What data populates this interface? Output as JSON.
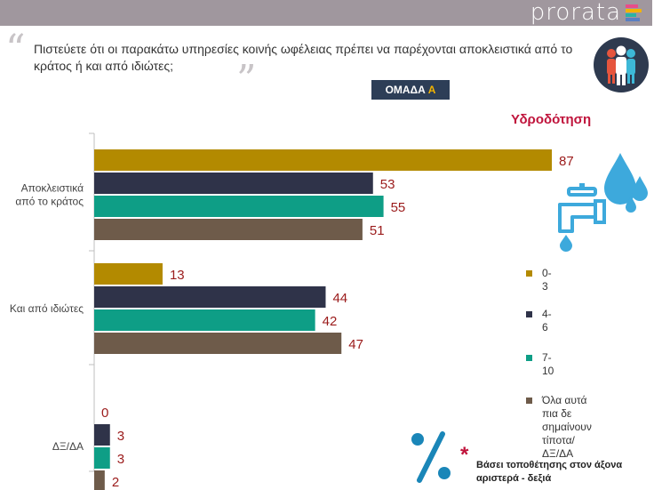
{
  "header": {
    "brand": "prorata"
  },
  "question": {
    "open_quote": "“",
    "text": "Πιστεύετε ότι οι παρακάτω υπηρεσίες κοινής ωφέλειας πρέπει να παρέχονται αποκλειστικά από το κράτος ή και από ιδιώτες;",
    "close_quote": "”"
  },
  "group_badge": {
    "label": "ΟΜΑΔΑ",
    "letter": "Α"
  },
  "icons": {
    "people": "people-icon",
    "water": "water-tap-icon",
    "percent": "percent-icon"
  },
  "colors": {
    "c1": "#b38a00",
    "c2": "#2f3349",
    "c3": "#0e9e86",
    "c4": "#6e5b4a",
    "value": "#9b1b1b",
    "title": "#c0143c"
  },
  "chart_data": {
    "type": "bar",
    "orientation": "horizontal",
    "title": "Υδροδότηση",
    "categories": [
      "Αποκλειστικά από το κράτος",
      "Και από ιδιώτες",
      "ΔΞ/ΔΑ"
    ],
    "category_lines": [
      [
        "Αποκλειστικά",
        "από το κράτος"
      ],
      [
        "Και από ιδιώτες"
      ],
      [
        "ΔΞ/ΔΑ"
      ]
    ],
    "series": [
      {
        "name": "0-3",
        "color": "#b38a00",
        "values": [
          87,
          13,
          0
        ]
      },
      {
        "name": "4-6",
        "color": "#2f3349",
        "values": [
          53,
          44,
          3
        ]
      },
      {
        "name": "7-10",
        "color": "#0e9e86",
        "values": [
          55,
          42,
          3
        ]
      },
      {
        "name": "Όλα αυτά πια δε σημαίνουν τίποτα/ΔΞ/ΔΑ",
        "name_lines": [
          "Όλα αυτά πια δε",
          "σημαίνουν",
          "τίποτα/ΔΞ/ΔΑ"
        ],
        "color": "#6e5b4a",
        "values": [
          51,
          47,
          2
        ]
      }
    ],
    "xlim": [
      0,
      100
    ],
    "legend_position": "right",
    "grid": false
  },
  "footnote": {
    "star": "*",
    "text": "Βάσει τοποθέτησης στον άξονα αριστερά - δεξιά"
  }
}
